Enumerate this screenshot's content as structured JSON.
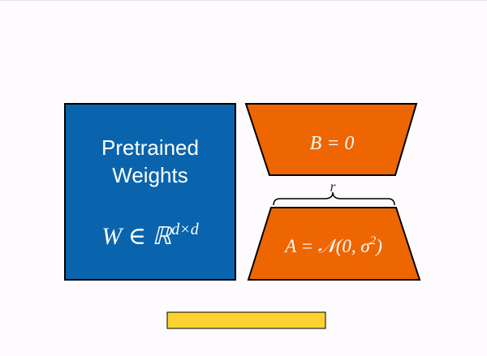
{
  "colors": {
    "pretrained_fill": "#0a64ad",
    "adapter_fill": "#ee6602",
    "bar_fill": "#fbd22f",
    "stroke": "#000000"
  },
  "pretrained": {
    "title_line1": "Pretrained",
    "title_line2": "Weights",
    "formula_base": "W ∈ ℝ",
    "formula_sup": "d×d"
  },
  "matrix_b": {
    "formula": "B = 0"
  },
  "matrix_a": {
    "formula_main": "A = 𝒩(0, σ",
    "formula_sup": "2",
    "formula_end": ")"
  },
  "rank_label": "r"
}
